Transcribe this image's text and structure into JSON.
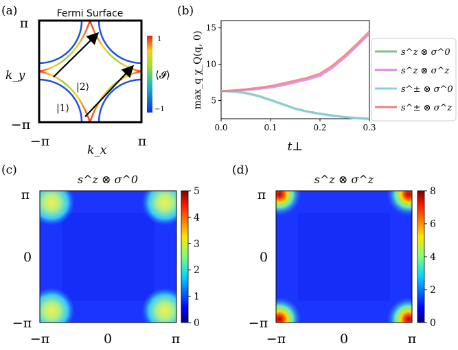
{
  "chart_data": [
    {
      "panel": "(a)",
      "type": "diagram",
      "title": "Fermi Surface",
      "xlabel": "k_x",
      "ylabel": "k_y",
      "x_ticks": [
        "−π",
        "π"
      ],
      "y_ticks": [
        "π",
        "−π"
      ],
      "colorbar": {
        "label": "⟨𝓘⟩",
        "ticks": [
          "1",
          "−1"
        ],
        "range": [
          -1,
          1
        ]
      },
      "annotations": [
        "|1⟩",
        "|2⟩"
      ],
      "colors": {
        "outer_pocket": "#1f4fe0",
        "inner_pocket_gradient": [
          "#f03b20",
          "#f7d11e",
          "#9ad032",
          "#2ab5a8"
        ]
      }
    },
    {
      "panel": "(b)",
      "type": "line",
      "xlabel": "t⊥",
      "ylabel": "max_q χ_Q(q, 0)",
      "xlim": [
        0.0,
        0.3
      ],
      "ylim": [
        2.5,
        16
      ],
      "x_ticks": [
        "0.0",
        "0.1",
        "0.2",
        "0.3"
      ],
      "y_ticks": [
        "5",
        "10",
        "15"
      ],
      "x": [
        0.0,
        0.025,
        0.05,
        0.075,
        0.1,
        0.125,
        0.15,
        0.175,
        0.2,
        0.225,
        0.25,
        0.275,
        0.3
      ],
      "series": [
        {
          "name": "s^z ⊗ σ^0",
          "color": "#7fbf8a",
          "values": [
            6.3,
            6.25,
            6.05,
            5.65,
            5.1,
            4.5,
            3.9,
            3.5,
            3.2,
            2.95,
            2.75,
            2.6,
            2.5
          ]
        },
        {
          "name": "s^z ⊗ σ^z",
          "color": "#d88ae0",
          "values": [
            6.3,
            6.35,
            6.45,
            6.6,
            6.8,
            7.1,
            7.5,
            7.9,
            8.4,
            9.5,
            10.9,
            12.5,
            14.2
          ]
        },
        {
          "name": "s^± ⊗ σ^0",
          "color": "#85cfe8",
          "values": [
            6.3,
            6.22,
            6.0,
            5.6,
            5.05,
            4.45,
            3.85,
            3.45,
            3.15,
            2.9,
            2.72,
            2.55,
            2.45
          ]
        },
        {
          "name": "s^± ⊗ σ^z",
          "color": "#ef7f7f",
          "values": [
            6.3,
            6.4,
            6.55,
            6.75,
            7.0,
            7.35,
            7.75,
            8.15,
            8.7,
            9.8,
            11.2,
            12.8,
            14.5
          ]
        }
      ],
      "legend": "outside-right"
    },
    {
      "panel": "(c)",
      "type": "heatmap",
      "title": "s^z ⊗ σ^0",
      "x_ticks": [
        "−π",
        "0",
        "π"
      ],
      "y_ticks": [
        "π",
        "0",
        "−π"
      ],
      "colorbar": {
        "range": [
          0,
          5
        ],
        "ticks": [
          "5",
          "4",
          "3",
          "2",
          "1",
          "0"
        ]
      },
      "background_value": 0.6,
      "corner_peak_value": 3.5
    },
    {
      "panel": "(d)",
      "type": "heatmap",
      "title": "s^z ⊗ σ^z",
      "x_ticks": [
        "−π",
        "0",
        "π"
      ],
      "y_ticks": [
        "π",
        "0",
        "−π"
      ],
      "colorbar": {
        "range": [
          0,
          8
        ],
        "ticks": [
          "8",
          "6",
          "4",
          "2",
          "0"
        ]
      },
      "background_value": 0.8,
      "corner_peak_value": 7.8
    }
  ],
  "labels": {
    "a": "(a)",
    "b": "(b)",
    "c": "(c)",
    "d": "(d)",
    "fermi_title": "Fermi Surface",
    "ket1": "|1⟩",
    "ket2": "|2⟩"
  }
}
